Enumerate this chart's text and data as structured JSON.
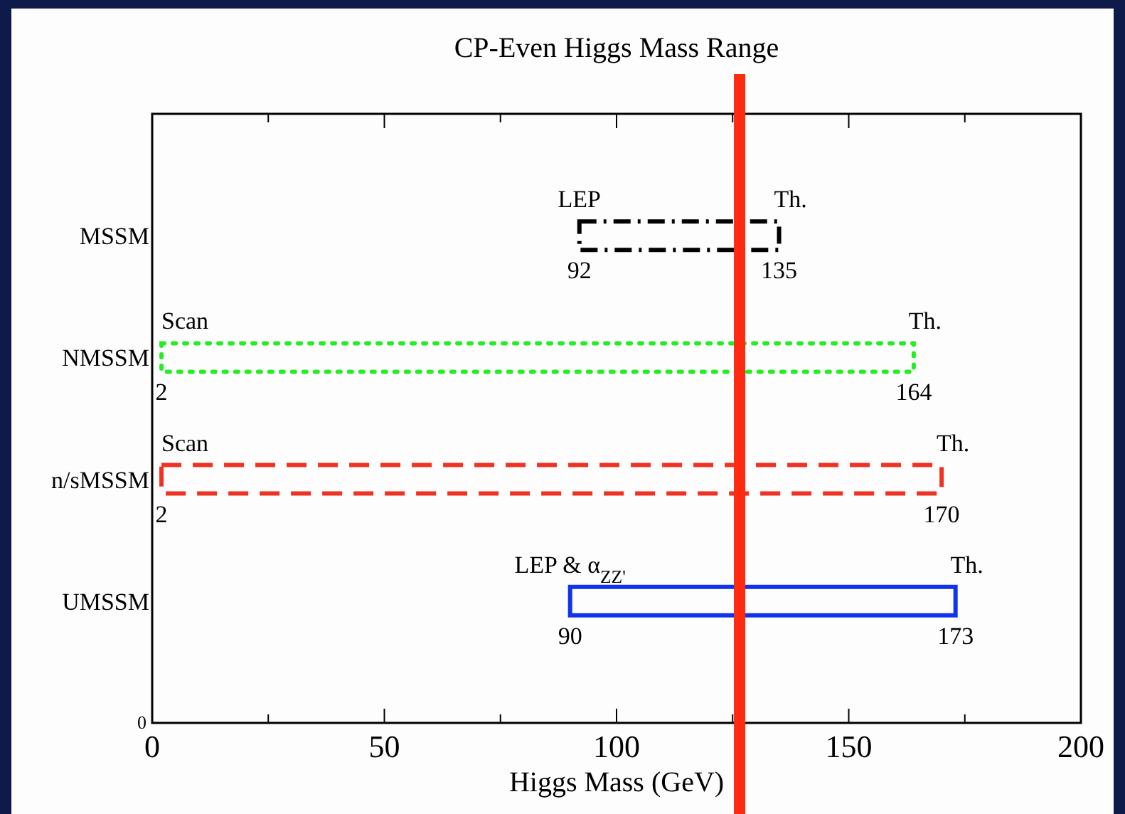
{
  "chart_data": {
    "type": "bar",
    "orientation": "horizontal",
    "title": "CP-Even Higgs Mass Range",
    "xlabel": "Higgs Mass (GeV)",
    "categories": [
      "MSSM",
      "NMSSM",
      "n/sMSSM",
      "UMSSM"
    ],
    "series": [
      {
        "color": "#000000",
        "line_style": "dashdot",
        "values": [
          43,
          null,
          null,
          null
        ],
        "base": [
          92,
          null,
          null,
          null
        ]
      },
      {
        "color": "#22ee22",
        "line_style": "dotted",
        "values": [
          null,
          162,
          null,
          null
        ],
        "base": [
          null,
          2,
          null,
          null
        ]
      },
      {
        "color": "#ee3322",
        "line_style": "dashed",
        "values": [
          null,
          null,
          168,
          null
        ],
        "base": [
          null,
          null,
          2,
          null
        ]
      },
      {
        "color": "#1133ee",
        "line_style": "solid",
        "values": [
          null,
          null,
          null,
          83
        ],
        "base": [
          null,
          null,
          null,
          90
        ]
      }
    ],
    "xlim": [
      0,
      200
    ],
    "xticks": [
      0,
      {
        "value": 25,
        "label": null
      },
      50,
      {
        "value": 75,
        "label": null
      },
      100,
      {
        "value": 125,
        "label": null
      },
      150,
      {
        "value": 175,
        "label": null
      },
      200
    ],
    "ref_lines": [
      {
        "axis": "x",
        "value": 126.5,
        "color": "#ff2a10"
      }
    ],
    "annotations": [
      {
        "text": "LEP",
        "x": 92,
        "y": "MSSM"
      },
      {
        "text": "Th.",
        "x": 135,
        "y": "MSSM"
      },
      {
        "text": "92",
        "x": 92,
        "y": "MSSM"
      },
      {
        "text": "135",
        "x": 135,
        "y": "MSSM"
      },
      {
        "text": "Scan",
        "x": 2,
        "y": "NMSSM"
      },
      {
        "text": "Th.",
        "x": 164,
        "y": "NMSSM"
      },
      {
        "text": "2",
        "x": 2,
        "y": "NMSSM"
      },
      {
        "text": "164",
        "x": 164,
        "y": "NMSSM"
      },
      {
        "text": "Scan",
        "x": 2,
        "y": "n/sMSSM"
      },
      {
        "text": "Th.",
        "x": 170,
        "y": "n/sMSSM"
      },
      {
        "text": "2",
        "x": 2,
        "y": "n/sMSSM"
      },
      {
        "text": "170",
        "x": 170,
        "y": "n/sMSSM"
      },
      {
        "text": "LEP & α$_{ZZ'}$",
        "x": 90,
        "y": "UMSSM"
      },
      {
        "text": "Th.",
        "x": 173,
        "y": "UMSSM"
      },
      {
        "text": "90",
        "x": 90,
        "y": "UMSSM"
      },
      {
        "text": "173",
        "x": 173,
        "y": "UMSSM"
      },
      "0"
    ]
  }
}
